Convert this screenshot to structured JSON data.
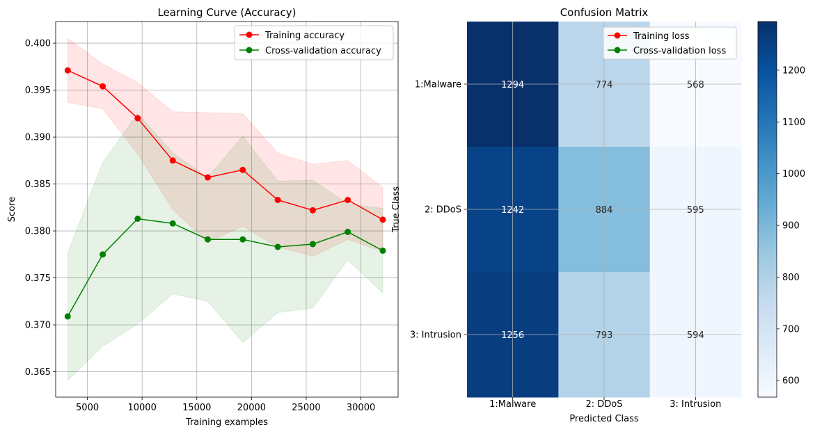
{
  "chart_data": [
    {
      "type": "line",
      "title": "Learning Curve (Accuracy)",
      "xlabel": "Training examples",
      "ylabel": "Score",
      "xlim": [
        2100,
        33400
      ],
      "ylim": [
        0.3623,
        0.4023
      ],
      "xticks": [
        5000,
        10000,
        15000,
        20000,
        25000,
        30000
      ],
      "yticks": [
        0.365,
        0.37,
        0.375,
        0.38,
        0.385,
        0.39,
        0.395,
        0.4
      ],
      "grid": true,
      "legend_position": "top-right",
      "x": [
        3200,
        6400,
        9600,
        12800,
        16000,
        19200,
        22400,
        25600,
        28800,
        32000
      ],
      "series": [
        {
          "name": "Training accuracy",
          "color": "#ff0000",
          "band_color": "#ffcccc",
          "values": [
            0.3971,
            0.3954,
            0.392,
            0.3875,
            0.3857,
            0.3865,
            0.3833,
            0.3822,
            0.3833,
            0.3812
          ],
          "upper": [
            0.4005,
            0.3978,
            0.3958,
            0.3927,
            0.3926,
            0.3925,
            0.3883,
            0.3871,
            0.3875,
            0.3846
          ],
          "lower": [
            0.3937,
            0.393,
            0.3882,
            0.3823,
            0.3788,
            0.3805,
            0.3783,
            0.3773,
            0.3791,
            0.3778
          ]
        },
        {
          "name": "Cross-validation accuracy",
          "color": "#008000",
          "band_color": "#b3d9b3",
          "values": [
            0.3709,
            0.3775,
            0.3813,
            0.3808,
            0.3791,
            0.3791,
            0.3783,
            0.3786,
            0.3799,
            0.3779
          ],
          "upper": [
            0.3777,
            0.3873,
            0.3925,
            0.3883,
            0.3857,
            0.3901,
            0.3853,
            0.3854,
            0.3829,
            0.3824
          ],
          "lower": [
            0.3641,
            0.3677,
            0.3701,
            0.3733,
            0.3725,
            0.3681,
            0.3713,
            0.3718,
            0.3769,
            0.3734
          ]
        }
      ]
    },
    {
      "type": "heatmap",
      "title": "Confusion Matrix",
      "xlabel": "Predicted Class",
      "ylabel": "True Class",
      "x_categories": [
        "1:Malware",
        "2: DDoS",
        "3: Intrusion"
      ],
      "y_categories": [
        "1:Malware",
        "2: DDoS",
        "3: Intrusion"
      ],
      "values": [
        [
          1294,
          774,
          568
        ],
        [
          1242,
          884,
          595
        ],
        [
          1256,
          793,
          594
        ]
      ],
      "colormap": "Blues",
      "colorbar_ticks": [
        600,
        700,
        800,
        900,
        1000,
        1100,
        1200
      ],
      "colorbar_range": [
        568,
        1294
      ],
      "grid": true,
      "legend_position": "top-right",
      "legend": [
        {
          "name": "Training loss",
          "color": "#ff0000"
        },
        {
          "name": "Cross-validation loss",
          "color": "#008000"
        }
      ]
    }
  ]
}
